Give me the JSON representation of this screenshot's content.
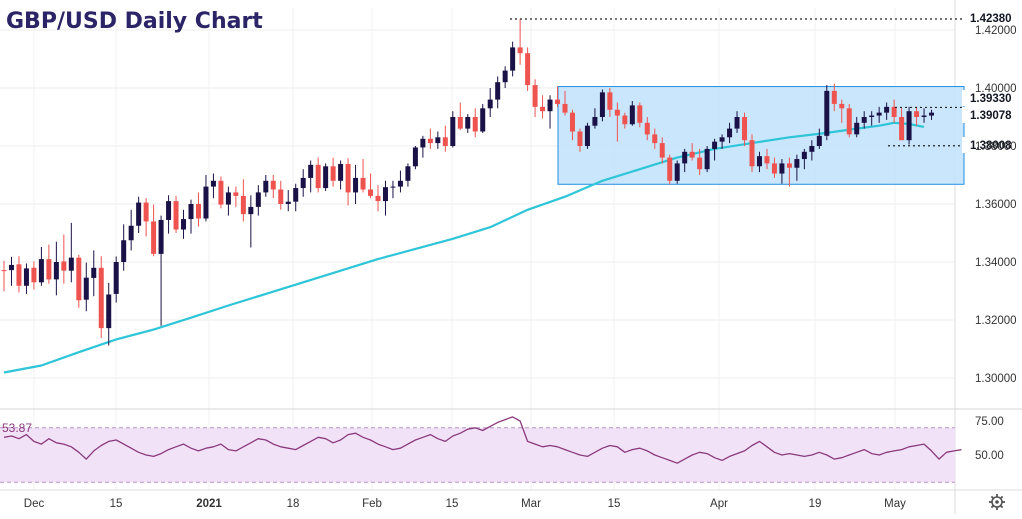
{
  "chart_data": [
    {
      "type": "candlestick",
      "title": "GBP/USD Daily Chart",
      "ylim": [
        1.296,
        1.428
      ],
      "y_ticks": [
        1.42,
        1.4,
        1.38,
        1.36,
        1.34,
        1.32,
        1.3
      ],
      "y_tick_labels": [
        "1.42000",
        "1.40000",
        "1.38000",
        "1.36000",
        "1.34000",
        "1.32000",
        "1.30000"
      ],
      "x_tick_labels": [
        "Dec",
        "15",
        "2021",
        "18",
        "Feb",
        "15",
        "Mar",
        "15",
        "Apr",
        "19",
        "May"
      ],
      "grid": true,
      "colors": {
        "up": "#1a1246",
        "down": "#ef5350",
        "ma": "#2ec5d8",
        "range_box": "#bfe2fb",
        "range_border": "#1f8fe0"
      },
      "price_levels": [
        {
          "label": "1.42380",
          "value": 1.4238
        },
        {
          "label": "1.39330",
          "value": 1.3933
        },
        {
          "label": "1.39078",
          "value": 1.39078
        },
        {
          "label": "1.38008",
          "value": 1.38008
        }
      ],
      "range_box": {
        "top": 1.4005,
        "bottom": 1.3668
      },
      "candles": [
        {
          "o": 1.3372,
          "h": 1.3404,
          "l": 1.3299,
          "c": 1.337
        },
        {
          "o": 1.3372,
          "h": 1.3418,
          "l": 1.3318,
          "c": 1.339
        },
        {
          "o": 1.3392,
          "h": 1.342,
          "l": 1.3295,
          "c": 1.3318
        },
        {
          "o": 1.3318,
          "h": 1.3395,
          "l": 1.329,
          "c": 1.3378
        },
        {
          "o": 1.338,
          "h": 1.3402,
          "l": 1.3305,
          "c": 1.333
        },
        {
          "o": 1.333,
          "h": 1.3452,
          "l": 1.3318,
          "c": 1.341
        },
        {
          "o": 1.341,
          "h": 1.346,
          "l": 1.3325,
          "c": 1.334
        },
        {
          "o": 1.334,
          "h": 1.347,
          "l": 1.3285,
          "c": 1.34
        },
        {
          "o": 1.3402,
          "h": 1.3495,
          "l": 1.3325,
          "c": 1.337
        },
        {
          "o": 1.337,
          "h": 1.3535,
          "l": 1.333,
          "c": 1.3415
        },
        {
          "o": 1.3415,
          "h": 1.3425,
          "l": 1.3242,
          "c": 1.3268
        },
        {
          "o": 1.327,
          "h": 1.3398,
          "l": 1.323,
          "c": 1.3346
        },
        {
          "o": 1.3345,
          "h": 1.344,
          "l": 1.3282,
          "c": 1.338
        },
        {
          "o": 1.338,
          "h": 1.342,
          "l": 1.3138,
          "c": 1.3172
        },
        {
          "o": 1.3172,
          "h": 1.3328,
          "l": 1.3112,
          "c": 1.3288
        },
        {
          "o": 1.329,
          "h": 1.3419,
          "l": 1.326,
          "c": 1.34
        },
        {
          "o": 1.34,
          "h": 1.353,
          "l": 1.337,
          "c": 1.3475
        },
        {
          "o": 1.3475,
          "h": 1.358,
          "l": 1.344,
          "c": 1.3525
        },
        {
          "o": 1.3525,
          "h": 1.3625,
          "l": 1.35,
          "c": 1.3605
        },
        {
          "o": 1.3605,
          "h": 1.362,
          "l": 1.3488,
          "c": 1.354
        },
        {
          "o": 1.354,
          "h": 1.3598,
          "l": 1.342,
          "c": 1.3428
        },
        {
          "o": 1.3428,
          "h": 1.356,
          "l": 1.318,
          "c": 1.3545
        },
        {
          "o": 1.3545,
          "h": 1.363,
          "l": 1.3498,
          "c": 1.361
        },
        {
          "o": 1.361,
          "h": 1.3628,
          "l": 1.35,
          "c": 1.3512
        },
        {
          "o": 1.3512,
          "h": 1.358,
          "l": 1.348,
          "c": 1.3548
        },
        {
          "o": 1.3548,
          "h": 1.3615,
          "l": 1.3498,
          "c": 1.36
        },
        {
          "o": 1.36,
          "h": 1.364,
          "l": 1.3522,
          "c": 1.355
        },
        {
          "o": 1.355,
          "h": 1.37,
          "l": 1.354,
          "c": 1.366
        },
        {
          "o": 1.366,
          "h": 1.3705,
          "l": 1.362,
          "c": 1.368
        },
        {
          "o": 1.368,
          "h": 1.3695,
          "l": 1.3585,
          "c": 1.3598
        },
        {
          "o": 1.3598,
          "h": 1.366,
          "l": 1.356,
          "c": 1.364
        },
        {
          "o": 1.364,
          "h": 1.366,
          "l": 1.359,
          "c": 1.3628
        },
        {
          "o": 1.3628,
          "h": 1.3685,
          "l": 1.354,
          "c": 1.3565
        },
        {
          "o": 1.3565,
          "h": 1.363,
          "l": 1.345,
          "c": 1.359
        },
        {
          "o": 1.359,
          "h": 1.3665,
          "l": 1.356,
          "c": 1.364
        },
        {
          "o": 1.364,
          "h": 1.37,
          "l": 1.3625,
          "c": 1.368
        },
        {
          "o": 1.368,
          "h": 1.37,
          "l": 1.362,
          "c": 1.365
        },
        {
          "o": 1.365,
          "h": 1.368,
          "l": 1.358,
          "c": 1.36
        },
        {
          "o": 1.36,
          "h": 1.3648,
          "l": 1.3575,
          "c": 1.3608
        },
        {
          "o": 1.3608,
          "h": 1.367,
          "l": 1.3575,
          "c": 1.3655
        },
        {
          "o": 1.3655,
          "h": 1.372,
          "l": 1.3625,
          "c": 1.369
        },
        {
          "o": 1.369,
          "h": 1.375,
          "l": 1.364,
          "c": 1.3735
        },
        {
          "o": 1.3735,
          "h": 1.376,
          "l": 1.364,
          "c": 1.3655
        },
        {
          "o": 1.3655,
          "h": 1.374,
          "l": 1.3645,
          "c": 1.373
        },
        {
          "o": 1.373,
          "h": 1.376,
          "l": 1.366,
          "c": 1.368
        },
        {
          "o": 1.368,
          "h": 1.375,
          "l": 1.365,
          "c": 1.3738
        },
        {
          "o": 1.3738,
          "h": 1.3758,
          "l": 1.3595,
          "c": 1.364
        },
        {
          "o": 1.364,
          "h": 1.3735,
          "l": 1.36,
          "c": 1.369
        },
        {
          "o": 1.369,
          "h": 1.3755,
          "l": 1.364,
          "c": 1.365
        },
        {
          "o": 1.365,
          "h": 1.3705,
          "l": 1.362,
          "c": 1.3628
        },
        {
          "o": 1.3628,
          "h": 1.3665,
          "l": 1.3575,
          "c": 1.361
        },
        {
          "o": 1.361,
          "h": 1.368,
          "l": 1.356,
          "c": 1.3658
        },
        {
          "o": 1.3658,
          "h": 1.368,
          "l": 1.362,
          "c": 1.366
        },
        {
          "o": 1.366,
          "h": 1.3715,
          "l": 1.364,
          "c": 1.368
        },
        {
          "o": 1.368,
          "h": 1.374,
          "l": 1.366,
          "c": 1.373
        },
        {
          "o": 1.373,
          "h": 1.38,
          "l": 1.372,
          "c": 1.3795
        },
        {
          "o": 1.3795,
          "h": 1.3835,
          "l": 1.376,
          "c": 1.3825
        },
        {
          "o": 1.3825,
          "h": 1.386,
          "l": 1.379,
          "c": 1.381
        },
        {
          "o": 1.381,
          "h": 1.385,
          "l": 1.379,
          "c": 1.383
        },
        {
          "o": 1.383,
          "h": 1.387,
          "l": 1.378,
          "c": 1.38
        },
        {
          "o": 1.38,
          "h": 1.392,
          "l": 1.3795,
          "c": 1.39
        },
        {
          "o": 1.39,
          "h": 1.395,
          "l": 1.3855,
          "c": 1.386
        },
        {
          "o": 1.386,
          "h": 1.391,
          "l": 1.3845,
          "c": 1.39
        },
        {
          "o": 1.39,
          "h": 1.393,
          "l": 1.383,
          "c": 1.385
        },
        {
          "o": 1.385,
          "h": 1.3945,
          "l": 1.3845,
          "c": 1.393
        },
        {
          "o": 1.393,
          "h": 1.4,
          "l": 1.39,
          "c": 1.396
        },
        {
          "o": 1.396,
          "h": 1.404,
          "l": 1.393,
          "c": 1.402
        },
        {
          "o": 1.402,
          "h": 1.4075,
          "l": 1.4,
          "c": 1.406
        },
        {
          "o": 1.406,
          "h": 1.416,
          "l": 1.404,
          "c": 1.414
        },
        {
          "o": 1.414,
          "h": 1.4238,
          "l": 1.408,
          "c": 1.412
        },
        {
          "o": 1.412,
          "h": 1.414,
          "l": 1.399,
          "c": 1.401
        },
        {
          "o": 1.401,
          "h": 1.403,
          "l": 1.39,
          "c": 1.3935
        },
        {
          "o": 1.3935,
          "h": 1.3975,
          "l": 1.3895,
          "c": 1.392
        },
        {
          "o": 1.392,
          "h": 1.3975,
          "l": 1.386,
          "c": 1.396
        },
        {
          "o": 1.396,
          "h": 1.4005,
          "l": 1.3935,
          "c": 1.3945
        },
        {
          "o": 1.3945,
          "h": 1.399,
          "l": 1.3905,
          "c": 1.3915
        },
        {
          "o": 1.3915,
          "h": 1.3925,
          "l": 1.382,
          "c": 1.385
        },
        {
          "o": 1.385,
          "h": 1.386,
          "l": 1.378,
          "c": 1.38
        },
        {
          "o": 1.38,
          "h": 1.388,
          "l": 1.379,
          "c": 1.387
        },
        {
          "o": 1.387,
          "h": 1.393,
          "l": 1.386,
          "c": 1.39
        },
        {
          "o": 1.39,
          "h": 1.3995,
          "l": 1.3885,
          "c": 1.3985
        },
        {
          "o": 1.3985,
          "h": 1.4,
          "l": 1.39,
          "c": 1.3925
        },
        {
          "o": 1.3925,
          "h": 1.395,
          "l": 1.3815,
          "c": 1.3905
        },
        {
          "o": 1.3905,
          "h": 1.3915,
          "l": 1.386,
          "c": 1.3875
        },
        {
          "o": 1.3875,
          "h": 1.3955,
          "l": 1.387,
          "c": 1.394
        },
        {
          "o": 1.394,
          "h": 1.395,
          "l": 1.3865,
          "c": 1.388
        },
        {
          "o": 1.388,
          "h": 1.39,
          "l": 1.382,
          "c": 1.384
        },
        {
          "o": 1.384,
          "h": 1.386,
          "l": 1.379,
          "c": 1.381
        },
        {
          "o": 1.381,
          "h": 1.383,
          "l": 1.374,
          "c": 1.376
        },
        {
          "o": 1.376,
          "h": 1.377,
          "l": 1.3668,
          "c": 1.368
        },
        {
          "o": 1.368,
          "h": 1.375,
          "l": 1.367,
          "c": 1.374
        },
        {
          "o": 1.374,
          "h": 1.379,
          "l": 1.371,
          "c": 1.378
        },
        {
          "o": 1.378,
          "h": 1.381,
          "l": 1.375,
          "c": 1.376
        },
        {
          "o": 1.376,
          "h": 1.379,
          "l": 1.37,
          "c": 1.372
        },
        {
          "o": 1.372,
          "h": 1.38,
          "l": 1.371,
          "c": 1.379
        },
        {
          "o": 1.379,
          "h": 1.3825,
          "l": 1.375,
          "c": 1.3815
        },
        {
          "o": 1.3815,
          "h": 1.384,
          "l": 1.379,
          "c": 1.383
        },
        {
          "o": 1.383,
          "h": 1.388,
          "l": 1.381,
          "c": 1.386
        },
        {
          "o": 1.386,
          "h": 1.392,
          "l": 1.3845,
          "c": 1.39
        },
        {
          "o": 1.39,
          "h": 1.3915,
          "l": 1.38,
          "c": 1.382
        },
        {
          "o": 1.382,
          "h": 1.384,
          "l": 1.371,
          "c": 1.373
        },
        {
          "o": 1.373,
          "h": 1.378,
          "l": 1.371,
          "c": 1.3765
        },
        {
          "o": 1.3765,
          "h": 1.379,
          "l": 1.372,
          "c": 1.374
        },
        {
          "o": 1.374,
          "h": 1.376,
          "l": 1.369,
          "c": 1.3705
        },
        {
          "o": 1.3705,
          "h": 1.3755,
          "l": 1.367,
          "c": 1.374
        },
        {
          "o": 1.374,
          "h": 1.376,
          "l": 1.366,
          "c": 1.3725
        },
        {
          "o": 1.3725,
          "h": 1.377,
          "l": 1.368,
          "c": 1.3755
        },
        {
          "o": 1.3755,
          "h": 1.379,
          "l": 1.372,
          "c": 1.378
        },
        {
          "o": 1.378,
          "h": 1.382,
          "l": 1.375,
          "c": 1.38
        },
        {
          "o": 1.38,
          "h": 1.386,
          "l": 1.379,
          "c": 1.3835
        },
        {
          "o": 1.3835,
          "h": 1.401,
          "l": 1.382,
          "c": 1.399
        },
        {
          "o": 1.399,
          "h": 1.4015,
          "l": 1.392,
          "c": 1.3945
        },
        {
          "o": 1.3945,
          "h": 1.396,
          "l": 1.388,
          "c": 1.393
        },
        {
          "o": 1.393,
          "h": 1.3945,
          "l": 1.383,
          "c": 1.384
        },
        {
          "o": 1.384,
          "h": 1.39,
          "l": 1.383,
          "c": 1.388
        },
        {
          "o": 1.388,
          "h": 1.392,
          "l": 1.386,
          "c": 1.39
        },
        {
          "o": 1.39,
          "h": 1.392,
          "l": 1.387,
          "c": 1.3905
        },
        {
          "o": 1.3905,
          "h": 1.3935,
          "l": 1.388,
          "c": 1.3915
        },
        {
          "o": 1.3915,
          "h": 1.395,
          "l": 1.389,
          "c": 1.3935
        },
        {
          "o": 1.3935,
          "h": 1.396,
          "l": 1.388,
          "c": 1.39
        },
        {
          "o": 1.39,
          "h": 1.393,
          "l": 1.383,
          "c": 1.382
        },
        {
          "o": 1.382,
          "h": 1.3935,
          "l": 1.3805,
          "c": 1.392
        },
        {
          "o": 1.392,
          "h": 1.3935,
          "l": 1.387,
          "c": 1.39
        },
        {
          "o": 1.39,
          "h": 1.393,
          "l": 1.388,
          "c": 1.3905
        },
        {
          "o": 1.3905,
          "h": 1.3925,
          "l": 1.389,
          "c": 1.3915
        }
      ],
      "moving_average": [
        {
          "x": 0,
          "y": 1.3019
        },
        {
          "x": 5,
          "y": 1.3043
        },
        {
          "x": 10,
          "y": 1.3089
        },
        {
          "x": 15,
          "y": 1.3133
        },
        {
          "x": 20,
          "y": 1.3167
        },
        {
          "x": 25,
          "y": 1.3208
        },
        {
          "x": 30,
          "y": 1.325
        },
        {
          "x": 35,
          "y": 1.329
        },
        {
          "x": 40,
          "y": 1.333
        },
        {
          "x": 45,
          "y": 1.337
        },
        {
          "x": 50,
          "y": 1.341
        },
        {
          "x": 55,
          "y": 1.3445
        },
        {
          "x": 60,
          "y": 1.348
        },
        {
          "x": 65,
          "y": 1.352
        },
        {
          "x": 70,
          "y": 1.358
        },
        {
          "x": 75,
          "y": 1.3625
        },
        {
          "x": 80,
          "y": 1.368
        },
        {
          "x": 85,
          "y": 1.372
        },
        {
          "x": 90,
          "y": 1.376
        },
        {
          "x": 95,
          "y": 1.379
        },
        {
          "x": 100,
          "y": 1.381
        },
        {
          "x": 105,
          "y": 1.383
        },
        {
          "x": 110,
          "y": 1.3845
        },
        {
          "x": 114,
          "y": 1.386
        },
        {
          "x": 117,
          "y": 1.387
        },
        {
          "x": 119,
          "y": 1.388
        },
        {
          "x": 121,
          "y": 1.3876
        },
        {
          "x": 123,
          "y": 1.3866
        }
      ]
    },
    {
      "type": "line",
      "name": "rsi",
      "current_label": "53.87",
      "ylim": [
        38,
        78
      ],
      "y_ticks": [
        75,
        50
      ],
      "y_tick_labels": [
        "75.00",
        "50.00"
      ],
      "band": [
        70,
        30
      ],
      "colors": {
        "line": "#8a3a7c",
        "band": "#f2e2f8"
      },
      "values": [
        63,
        64,
        62,
        65,
        60,
        58,
        62,
        59,
        58,
        56,
        52,
        47,
        53,
        57,
        60,
        61,
        58,
        55,
        52,
        50,
        49,
        51,
        54,
        56,
        58,
        55,
        53,
        55,
        56,
        58,
        54,
        53,
        56,
        59,
        62,
        61,
        58,
        56,
        55,
        54,
        57,
        60,
        63,
        62,
        59,
        61,
        65,
        66,
        63,
        61,
        58,
        56,
        54,
        55,
        58,
        61,
        63,
        65,
        62,
        60,
        64,
        66,
        69,
        70,
        68,
        71,
        74,
        76,
        78,
        75,
        60,
        58,
        56,
        57,
        56,
        54,
        52,
        50,
        49,
        52,
        55,
        57,
        56,
        52,
        54,
        55,
        53,
        50,
        48,
        46,
        44,
        47,
        50,
        52,
        51,
        48,
        46,
        49,
        51,
        53,
        57,
        60,
        56,
        52,
        50,
        51,
        50,
        49,
        50,
        52,
        50,
        47,
        48,
        50,
        52,
        54,
        51,
        50,
        52,
        53,
        54,
        56,
        57,
        58,
        53,
        47,
        52,
        53,
        53.87
      ]
    }
  ]
}
